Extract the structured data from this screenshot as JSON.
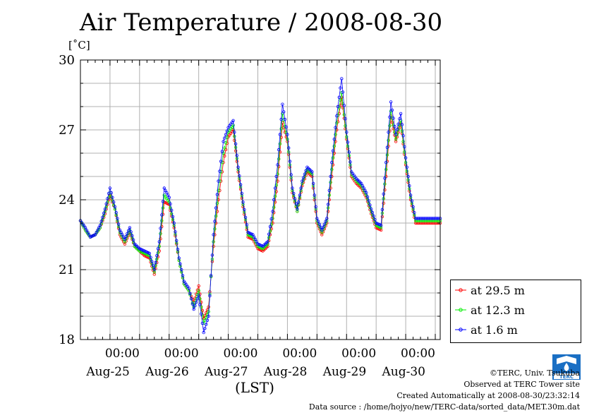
{
  "chart_data": {
    "type": "line",
    "title": "Air Temperature / 2008-08-30",
    "ylabel": "[˚C]",
    "xlabel": "(LST)",
    "ylim": [
      18,
      30
    ],
    "yticks": [
      18,
      21,
      24,
      27,
      30
    ],
    "xlim_hours": [
      0,
      146
    ],
    "x_tick_labels": [
      {
        "time": "00:00",
        "date": "Aug-25",
        "hour": 24
      },
      {
        "time": "00:00",
        "date": "Aug-26",
        "hour": 48
      },
      {
        "time": "00:00",
        "date": "Aug-27",
        "hour": 72
      },
      {
        "time": "00:00",
        "date": "Aug-28",
        "hour": 96
      },
      {
        "time": "00:00",
        "date": "Aug-29",
        "hour": 120
      },
      {
        "time": "00:00",
        "date": "Aug-30",
        "hour": 144
      }
    ],
    "grid": true,
    "legend_position": "right",
    "base_x_hours": [
      0,
      2,
      4,
      6,
      8,
      10,
      12,
      14,
      16,
      18,
      20,
      22,
      24,
      26,
      28,
      30,
      32,
      34,
      36,
      38,
      40,
      42,
      44,
      46,
      48,
      50,
      52,
      54,
      56,
      58,
      60,
      62,
      64,
      66,
      68,
      70,
      72,
      74,
      76,
      78,
      80,
      82,
      84,
      86,
      88,
      90,
      92,
      94,
      96,
      98,
      100,
      102,
      104,
      106,
      108,
      110,
      112,
      114,
      116,
      118,
      120,
      122,
      124,
      126,
      128,
      130,
      132,
      134,
      136,
      138,
      140,
      142,
      144,
      146
    ],
    "series": [
      {
        "name": "at 29.5 m",
        "color": "#ff0000",
        "values": [
          23.1,
          22.7,
          22.4,
          22.5,
          22.8,
          23.4,
          24.2,
          23.6,
          22.5,
          22.1,
          22.6,
          22.0,
          21.8,
          21.6,
          21.5,
          20.8,
          21.8,
          23.9,
          23.8,
          22.8,
          21.4,
          20.4,
          20.1,
          19.6,
          20.3,
          18.9,
          19.4,
          22.0,
          24.0,
          25.6,
          26.7,
          27.0,
          25.2,
          23.7,
          22.4,
          22.3,
          21.9,
          21.8,
          22.0,
          23.0,
          24.8,
          27.3,
          26.5,
          24.3,
          23.5,
          24.6,
          25.2,
          25.0,
          23.0,
          22.5,
          23.0,
          25.0,
          27.0,
          28.4,
          26.6,
          25.0,
          24.7,
          24.5,
          24.1,
          23.4,
          22.8,
          22.7,
          25.0,
          27.6,
          26.5,
          27.3,
          25.5,
          24.0,
          23.0,
          23.0,
          23.0,
          23.0,
          23.0,
          23.0
        ]
      },
      {
        "name": "at 12.3 m",
        "color": "#00ee00",
        "values": [
          23.1,
          22.7,
          22.4,
          22.5,
          22.8,
          23.5,
          24.3,
          23.6,
          22.6,
          22.2,
          22.7,
          22.0,
          21.8,
          21.7,
          21.6,
          20.9,
          22.0,
          24.2,
          23.9,
          22.9,
          21.4,
          20.4,
          20.1,
          19.4,
          20.1,
          18.7,
          19.2,
          22.2,
          24.4,
          26.0,
          26.9,
          27.2,
          25.3,
          23.8,
          22.5,
          22.4,
          22.0,
          21.9,
          22.1,
          23.2,
          25.1,
          27.7,
          26.6,
          24.4,
          23.5,
          24.7,
          25.3,
          25.1,
          23.1,
          22.6,
          23.1,
          25.3,
          27.3,
          28.6,
          26.7,
          25.1,
          24.8,
          24.6,
          24.2,
          23.5,
          22.9,
          22.8,
          25.3,
          27.8,
          26.6,
          27.4,
          25.6,
          24.1,
          23.1,
          23.1,
          23.1,
          23.1,
          23.1,
          23.1
        ]
      },
      {
        "name": "at 1.6 m",
        "color": "#0000ff",
        "values": [
          23.1,
          22.8,
          22.4,
          22.5,
          22.9,
          23.6,
          24.5,
          23.7,
          22.7,
          22.3,
          22.8,
          22.1,
          21.9,
          21.8,
          21.7,
          21.0,
          22.2,
          24.5,
          24.1,
          23.0,
          21.5,
          20.5,
          20.2,
          19.3,
          19.9,
          18.3,
          19.0,
          22.5,
          24.8,
          26.5,
          27.1,
          27.4,
          25.4,
          23.9,
          22.6,
          22.5,
          22.1,
          22.0,
          22.2,
          23.5,
          25.5,
          28.1,
          26.8,
          24.5,
          23.6,
          24.8,
          25.4,
          25.2,
          23.2,
          22.7,
          23.2,
          25.6,
          27.6,
          29.2,
          26.9,
          25.2,
          24.9,
          24.7,
          24.3,
          23.6,
          23.0,
          22.9,
          25.6,
          28.2,
          26.8,
          27.7,
          25.8,
          24.2,
          23.2,
          23.2,
          23.2,
          23.2,
          23.2,
          23.2
        ]
      }
    ]
  },
  "credits": {
    "copyright": "©TERC, Univ. Tsukuba",
    "site": "Observed at TERC Tower site",
    "created": "Created Automatically at 2008-08-30/23:32:14",
    "source": "Data source : /home/hojyo/new/TERC-data/sorted_data/MET.30m.dat"
  },
  "logo": {
    "text": "TERC",
    "color": "#1a6fc4"
  }
}
